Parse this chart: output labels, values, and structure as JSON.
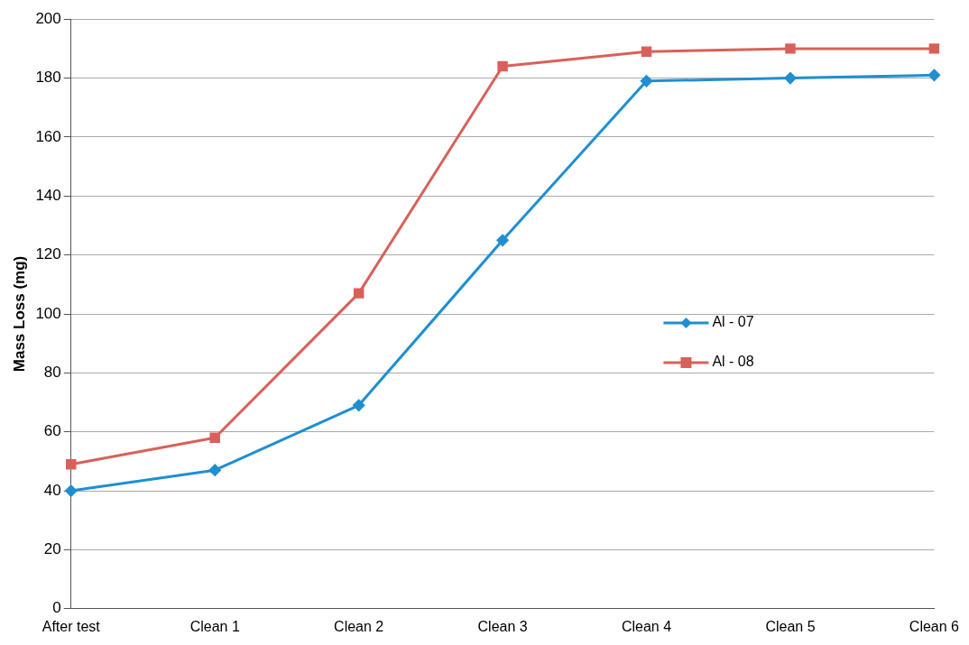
{
  "chart_data": {
    "type": "line",
    "ylabel": "Mass Loss (mg)",
    "categories": [
      "After test",
      "Clean 1",
      "Clean 2",
      "Clean 3",
      "Clean 4",
      "Clean 5",
      "Clean 6"
    ],
    "series": [
      {
        "name": "Al - 07",
        "color": "#1f8fd0",
        "marker": "diamond",
        "values": [
          40,
          47,
          69,
          125,
          179,
          180,
          181
        ]
      },
      {
        "name": "Al - 08",
        "color": "#d9605a",
        "marker": "square",
        "values": [
          49,
          58,
          107,
          184,
          189,
          190,
          190
        ]
      }
    ],
    "ylim": [
      0,
      200
    ],
    "yticks": [
      0,
      20,
      40,
      60,
      80,
      100,
      120,
      140,
      160,
      180,
      200
    ],
    "grid": "y",
    "legend": "center right"
  }
}
